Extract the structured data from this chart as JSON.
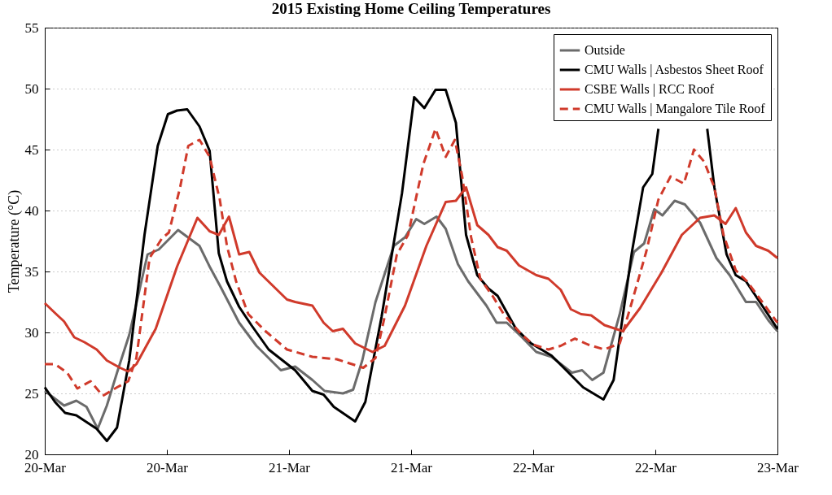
{
  "chart_data": {
    "type": "line",
    "title": "2015 Existing Home Ceiling Temperatures",
    "ylabel": "Temperature (°C)",
    "xlim": [
      "2015-03-20T00:00",
      "2015-03-23T00:00"
    ],
    "xticks": [
      {
        "value": "2015-03-20T00:00",
        "label": "20-Mar"
      },
      {
        "value": "2015-03-20T12:00",
        "label": "20-Mar"
      },
      {
        "value": "2015-03-21T00:00",
        "label": "21-Mar"
      },
      {
        "value": "2015-03-21T12:00",
        "label": "21-Mar"
      },
      {
        "value": "2015-03-22T00:00",
        "label": "22-Mar"
      },
      {
        "value": "2015-03-22T12:00",
        "label": "22-Mar"
      },
      {
        "value": "2015-03-23T00:00",
        "label": "23-Mar"
      }
    ],
    "ylim": [
      20,
      55
    ],
    "yticks": [
      20,
      25,
      30,
      35,
      40,
      45,
      50,
      55
    ],
    "grid": "y",
    "legend": "top right",
    "series": [
      {
        "name": "Outside",
        "color": "#6b6b6b",
        "line_style": "solid",
        "x": [
          "2015-03-20T00:00",
          "2015-03-20T01:54",
          "2015-03-20T03:06",
          "2015-03-20T04:06",
          "2015-03-20T05:12",
          "2015-03-20T06:06",
          "2015-03-20T07:06",
          "2015-03-20T08:18",
          "2015-03-20T10:06",
          "2015-03-20T11:12",
          "2015-03-20T13:06",
          "2015-03-20T15:12",
          "2015-03-20T16:12",
          "2015-03-20T17:18",
          "2015-03-20T19:06",
          "2015-03-20T20:48",
          "2015-03-20T23:12",
          "2015-03-21T00:36",
          "2015-03-21T02:18",
          "2015-03-21T03:30",
          "2015-03-21T05:18",
          "2015-03-21T06:18",
          "2015-03-21T07:12",
          "2015-03-21T08:30",
          "2015-03-21T10:18",
          "2015-03-21T11:24",
          "2015-03-21T12:30",
          "2015-03-21T13:18",
          "2015-03-21T14:30",
          "2015-03-21T15:24",
          "2015-03-21T16:36",
          "2015-03-21T17:36",
          "2015-03-21T19:24",
          "2015-03-21T20:24",
          "2015-03-21T21:24",
          "2015-03-21T22:54",
          "2015-03-22T00:18",
          "2015-03-22T01:48",
          "2015-03-22T03:48",
          "2015-03-22T04:48",
          "2015-03-22T05:48",
          "2015-03-22T06:54",
          "2015-03-22T08:30",
          "2015-03-22T09:54",
          "2015-03-22T10:54",
          "2015-03-22T11:54",
          "2015-03-22T12:42",
          "2015-03-22T13:54",
          "2015-03-22T14:54",
          "2015-03-22T16:24",
          "2015-03-22T18:00",
          "2015-03-22T19:18",
          "2015-03-22T20:54",
          "2015-03-22T21:54",
          "2015-03-22T23:06",
          "2015-03-23T00:00"
        ],
        "values": [
          25.2,
          24,
          24.4,
          23.9,
          22.1,
          24,
          26.7,
          29.8,
          36.4,
          36.8,
          38.4,
          37.1,
          35.4,
          33.7,
          30.8,
          28.9,
          26.9,
          27.2,
          26.1,
          25.2,
          25,
          25.3,
          27.7,
          32.5,
          37.1,
          37.8,
          39.3,
          38.9,
          39.5,
          38.5,
          35.6,
          34.2,
          32.2,
          30.8,
          30.8,
          29.6,
          28.4,
          28,
          26.7,
          26.9,
          26.1,
          26.7,
          31.5,
          36.6,
          37.3,
          40.1,
          39.6,
          40.8,
          40.5,
          39,
          36.1,
          34.7,
          32.5,
          32.5,
          31,
          30.1
        ]
      },
      {
        "name": "CMU Walls | Asbestos Sheet Roof",
        "color": "#000000",
        "line_style": "solid",
        "x": [
          "2015-03-20T00:00",
          "2015-03-20T01:00",
          "2015-03-20T02:00",
          "2015-03-20T03:06",
          "2015-03-20T05:06",
          "2015-03-20T06:06",
          "2015-03-20T07:06",
          "2015-03-20T08:18",
          "2015-03-20T09:48",
          "2015-03-20T11:06",
          "2015-03-20T12:06",
          "2015-03-20T13:00",
          "2015-03-20T14:00",
          "2015-03-20T15:12",
          "2015-03-20T16:12",
          "2015-03-20T17:06",
          "2015-03-20T17:54",
          "2015-03-20T19:06",
          "2015-03-20T20:18",
          "2015-03-20T22:00",
          "2015-03-21T00:36",
          "2015-03-21T02:18",
          "2015-03-21T03:24",
          "2015-03-21T04:24",
          "2015-03-21T06:30",
          "2015-03-21T07:30",
          "2015-03-21T09:06",
          "2015-03-21T11:06",
          "2015-03-21T12:18",
          "2015-03-21T13:18",
          "2015-03-21T14:24",
          "2015-03-21T15:24",
          "2015-03-21T16:24",
          "2015-03-21T17:24",
          "2015-03-21T18:30",
          "2015-03-21T19:36",
          "2015-03-21T20:30",
          "2015-03-21T22:18",
          "2015-03-21T23:48",
          "2015-03-22T01:48",
          "2015-03-22T03:00",
          "2015-03-22T04:54",
          "2015-03-22T06:54",
          "2015-03-22T07:54",
          "2015-03-22T09:42",
          "2015-03-22T10:48",
          "2015-03-22T11:42",
          "2015-03-22T12:18",
          "2015-03-22T14:42",
          "2015-03-22T17:06",
          "2015-03-22T17:48",
          "2015-03-22T19:00",
          "2015-03-22T19:54",
          "2015-03-22T20:54",
          "2015-03-22T22:30",
          "2015-03-23T00:00"
        ],
        "values": [
          25.5,
          24.3,
          23.4,
          23.2,
          22.1,
          21.1,
          22.2,
          27.7,
          38,
          45.3,
          47.9,
          48.2,
          48.3,
          46.9,
          44.9,
          36.5,
          34.2,
          32.1,
          30.6,
          28.6,
          26.9,
          25.2,
          24.9,
          23.9,
          22.7,
          24.3,
          31.3,
          41.4,
          49.3,
          48.4,
          49.9,
          49.9,
          47.2,
          38,
          34.7,
          33.6,
          33,
          30.3,
          29.1,
          28.1,
          27.1,
          25.5,
          24.5,
          26.1,
          36.6,
          41.9,
          43,
          46.7,
          null,
          46.7,
          41.9,
          36.4,
          34.7,
          34.2,
          32.2,
          30.3
        ]
      },
      {
        "name": "CSBE Walls | RCC Roof",
        "color": "#d03a2b",
        "line_style": "solid",
        "x": [
          "2015-03-20T00:00",
          "2015-03-20T01:00",
          "2015-03-20T01:54",
          "2015-03-20T02:54",
          "2015-03-20T03:54",
          "2015-03-20T05:06",
          "2015-03-20T06:06",
          "2015-03-20T07:24",
          "2015-03-20T08:12",
          "2015-03-20T09:00",
          "2015-03-20T10:54",
          "2015-03-20T13:00",
          "2015-03-20T15:00",
          "2015-03-20T16:12",
          "2015-03-20T17:06",
          "2015-03-20T18:06",
          "2015-03-20T19:06",
          "2015-03-20T20:06",
          "2015-03-20T21:06",
          "2015-03-20T23:48",
          "2015-03-21T00:36",
          "2015-03-21T02:18",
          "2015-03-21T03:24",
          "2015-03-21T04:18",
          "2015-03-21T05:18",
          "2015-03-21T06:30",
          "2015-03-21T08:12",
          "2015-03-21T09:24",
          "2015-03-21T11:24",
          "2015-03-21T13:30",
          "2015-03-21T15:24",
          "2015-03-21T16:24",
          "2015-03-21T17:24",
          "2015-03-21T18:30",
          "2015-03-21T19:36",
          "2015-03-21T20:30",
          "2015-03-21T21:24",
          "2015-03-21T22:36",
          "2015-03-22T00:18",
          "2015-03-22T01:30",
          "2015-03-22T02:42",
          "2015-03-22T03:42",
          "2015-03-22T04:42",
          "2015-03-22T05:42",
          "2015-03-22T07:00",
          "2015-03-22T08:48",
          "2015-03-22T10:30",
          "2015-03-22T12:36",
          "2015-03-22T14:36",
          "2015-03-22T16:24",
          "2015-03-22T17:48",
          "2015-03-22T18:54",
          "2015-03-22T19:54",
          "2015-03-22T20:54",
          "2015-03-22T21:54",
          "2015-03-22T23:06",
          "2015-03-23T00:00"
        ],
        "values": [
          32.4,
          31.6,
          30.9,
          29.6,
          29.2,
          28.6,
          27.7,
          27.1,
          26.8,
          27.4,
          30.3,
          35.4,
          39.4,
          38.3,
          38,
          39.5,
          36.4,
          36.6,
          34.9,
          32.7,
          32.5,
          32.2,
          30.8,
          30.1,
          30.3,
          29.1,
          28.4,
          28.9,
          32.2,
          37.1,
          40.7,
          40.8,
          41.9,
          38.8,
          38,
          37,
          36.7,
          35.5,
          34.7,
          34.4,
          33.5,
          31.9,
          31.5,
          31.4,
          30.6,
          30.1,
          32,
          34.9,
          38,
          39.4,
          39.6,
          38.9,
          40.2,
          38.2,
          37.1,
          36.7,
          36.1
        ]
      },
      {
        "name": "CMU Walls | Mangalore Tile Roof",
        "color": "#d03a2b",
        "line_style": "dashed",
        "x": [
          "2015-03-20T00:00",
          "2015-03-20T01:00",
          "2015-03-20T02:12",
          "2015-03-20T03:12",
          "2015-03-20T04:30",
          "2015-03-20T05:42",
          "2015-03-20T07:06",
          "2015-03-20T08:12",
          "2015-03-20T09:00",
          "2015-03-20T10:18",
          "2015-03-20T11:30",
          "2015-03-20T12:12",
          "2015-03-20T13:18",
          "2015-03-20T14:06",
          "2015-03-20T15:12",
          "2015-03-20T16:12",
          "2015-03-20T17:12",
          "2015-03-20T17:54",
          "2015-03-20T18:48",
          "2015-03-20T20:00",
          "2015-03-20T21:42",
          "2015-03-20T23:48",
          "2015-03-21T02:18",
          "2015-03-21T04:42",
          "2015-03-21T07:18",
          "2015-03-21T08:30",
          "2015-03-21T09:24",
          "2015-03-21T10:36",
          "2015-03-21T11:42",
          "2015-03-21T13:12",
          "2015-03-21T14:24",
          "2015-03-21T15:24",
          "2015-03-21T16:18",
          "2015-03-21T17:00",
          "2015-03-21T17:54",
          "2015-03-21T18:48",
          "2015-03-21T20:00",
          "2015-03-21T21:06",
          "2015-03-21T22:54",
          "2015-03-22T00:00",
          "2015-03-22T01:30",
          "2015-03-22T02:42",
          "2015-03-22T04:06",
          "2015-03-22T05:24",
          "2015-03-22T07:00",
          "2015-03-22T08:30",
          "2015-03-22T09:42",
          "2015-03-22T11:06",
          "2015-03-22T12:18",
          "2015-03-22T13:30",
          "2015-03-22T14:48",
          "2015-03-22T15:48",
          "2015-03-22T16:48",
          "2015-03-22T17:48",
          "2015-03-22T18:42",
          "2015-03-22T19:54",
          "2015-03-22T21:00",
          "2015-03-22T22:30",
          "2015-03-23T00:00"
        ],
        "values": [
          27.4,
          27.4,
          26.7,
          25.4,
          26,
          24.8,
          25.5,
          26,
          27.9,
          36.1,
          37.7,
          38.2,
          41.9,
          45.3,
          45.8,
          44.4,
          40.9,
          37.1,
          34.2,
          31.5,
          30.1,
          28.6,
          28,
          27.8,
          27.1,
          27.9,
          31.3,
          36.4,
          38,
          43.8,
          46.7,
          44.4,
          45.8,
          42.9,
          37.8,
          34.4,
          33,
          31.5,
          29.8,
          29,
          28.6,
          28.9,
          29.5,
          29,
          28.6,
          29.1,
          32.5,
          36.6,
          40.9,
          42.8,
          42.2,
          45,
          44,
          41.9,
          38,
          35.1,
          34.2,
          32.5,
          30.8
        ]
      }
    ]
  }
}
